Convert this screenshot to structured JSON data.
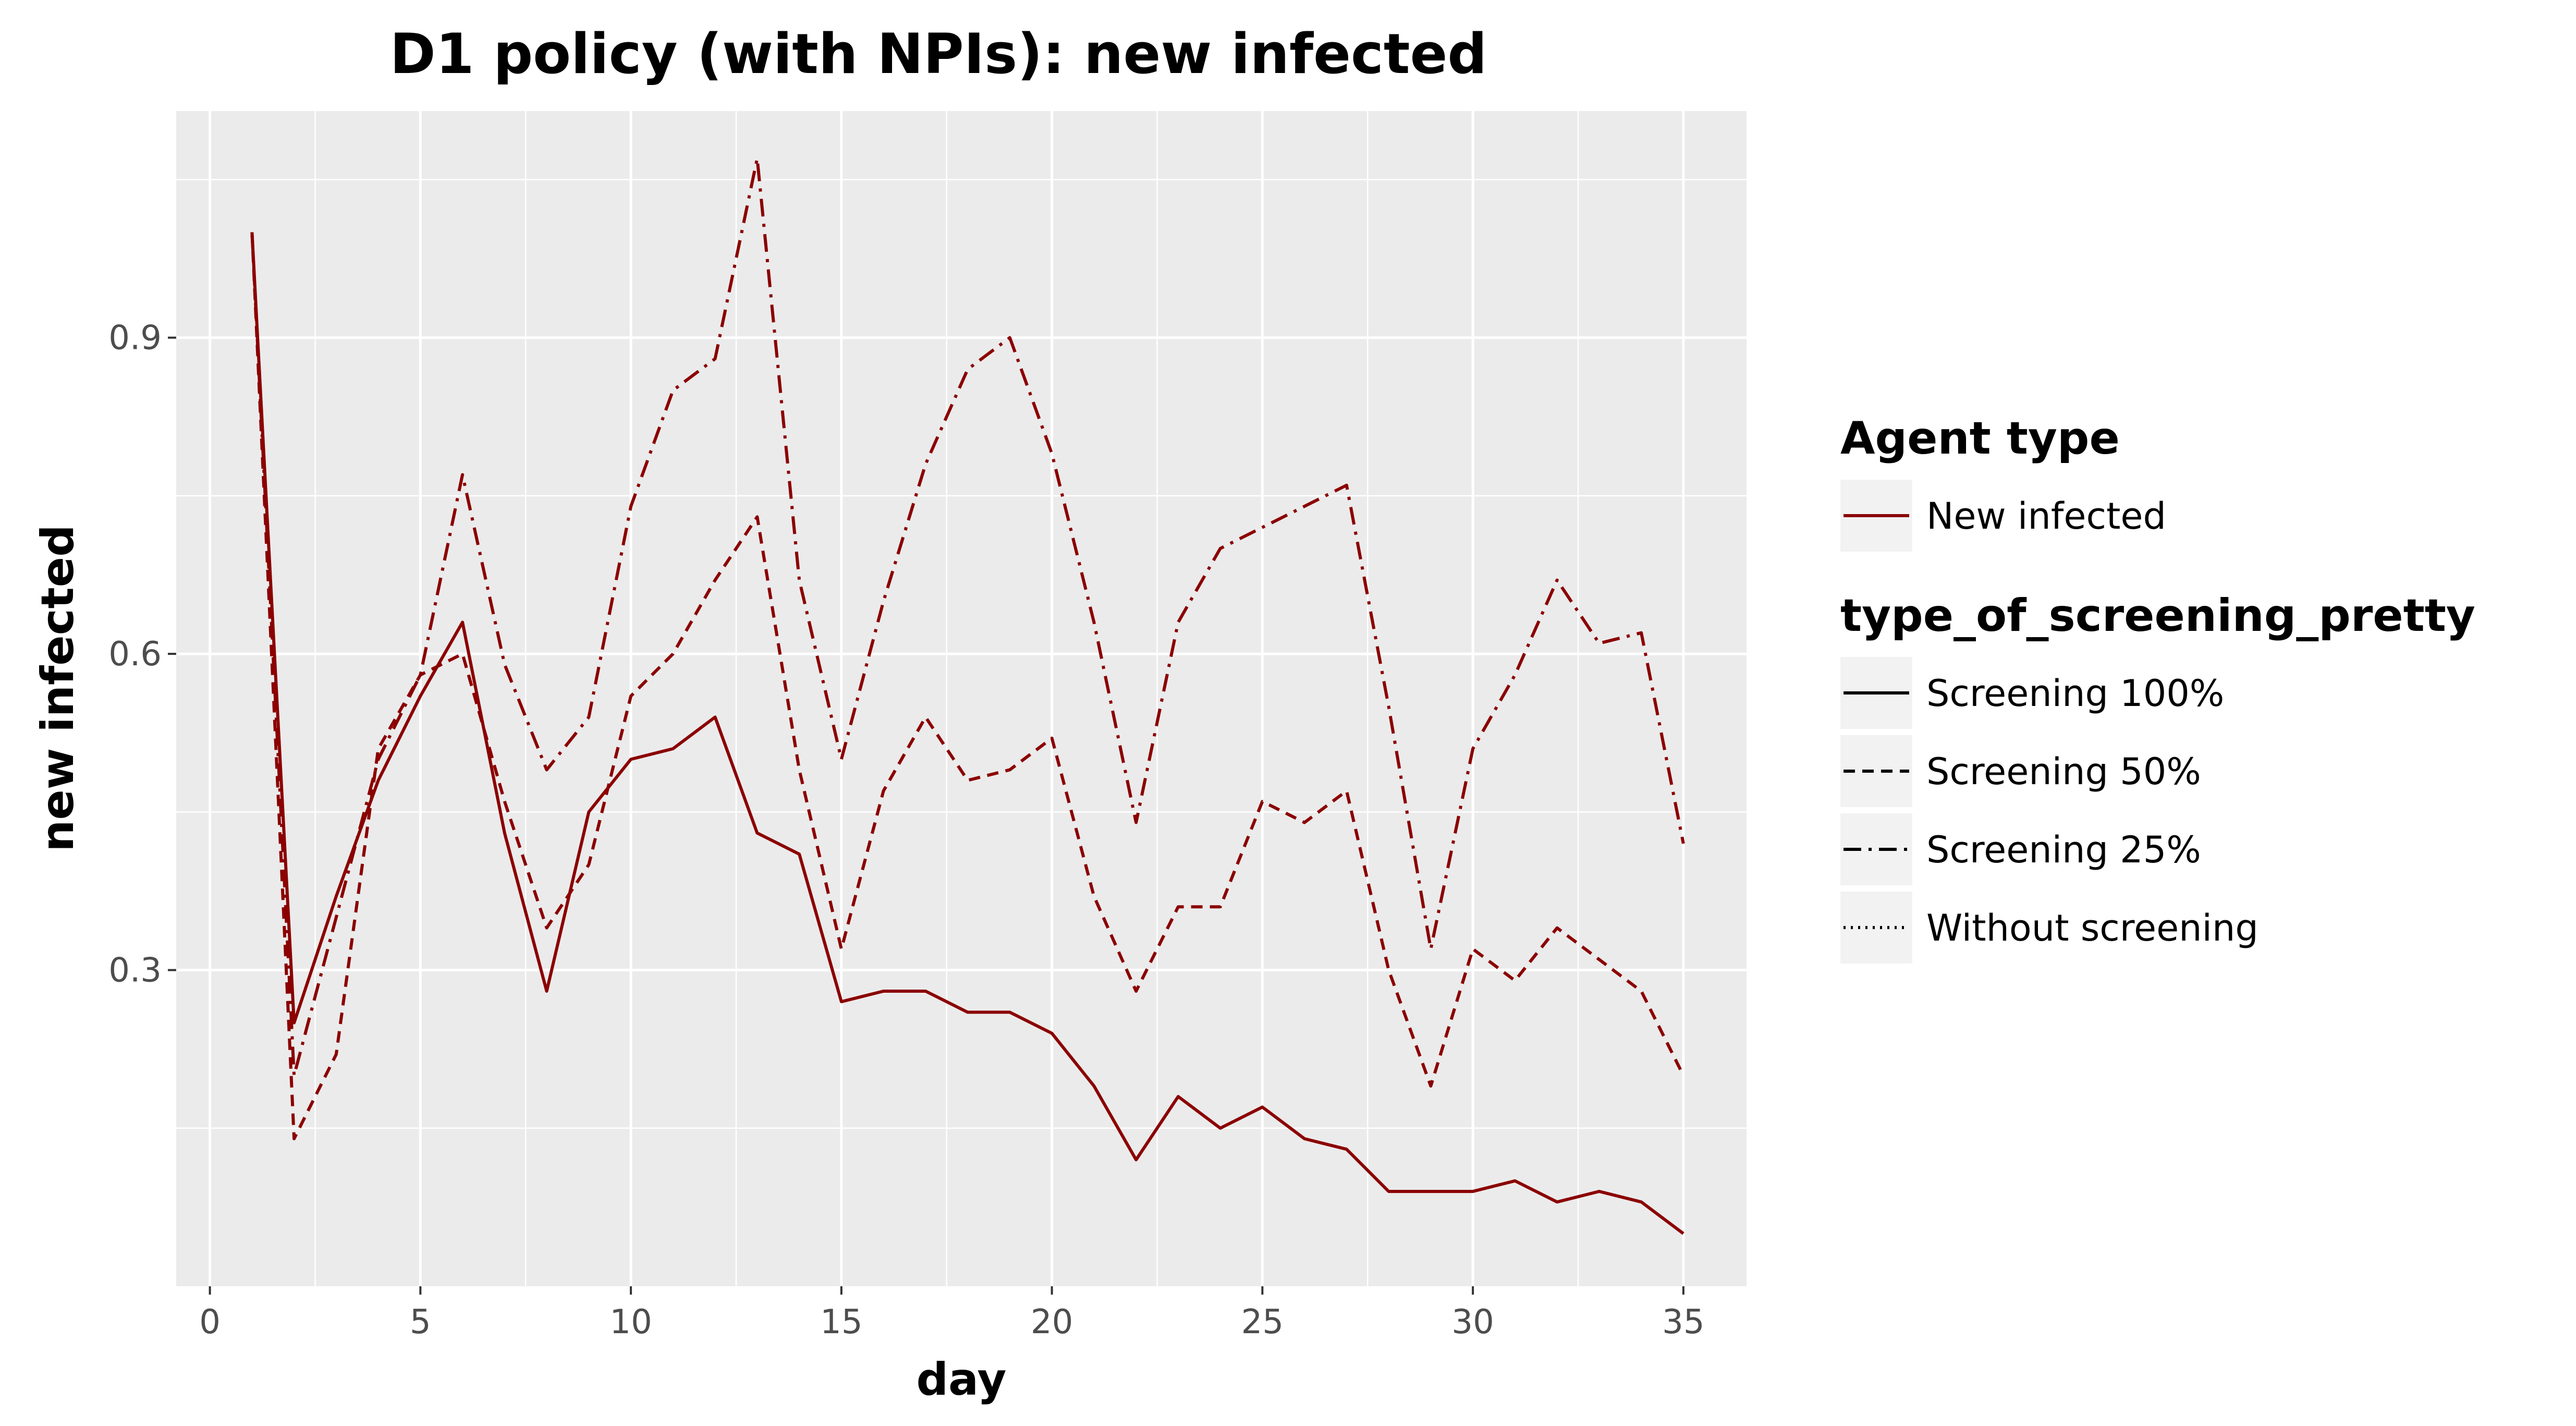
{
  "chart_data": {
    "type": "line",
    "title": "D1 policy (with NPIs): new infected",
    "xlabel": "day",
    "ylabel": "new infected",
    "xlim": [
      -0.8,
      36.5
    ],
    "ylim": [
      0.0,
      1.115
    ],
    "x_ticks": [
      0,
      5,
      10,
      15,
      20,
      25,
      30,
      35
    ],
    "x_tick_labels": [
      "0",
      "5",
      "10",
      "15",
      "20",
      "25",
      "30",
      "35"
    ],
    "y_ticks": [
      0.3,
      0.6,
      0.9
    ],
    "y_tick_labels": [
      "0.3",
      "0.6",
      "0.9"
    ],
    "grid": true,
    "line_color": "#8b0000",
    "panel_background": "#ebebeb",
    "legend_position": "right",
    "legends": [
      {
        "title": "Agent type",
        "entries": [
          {
            "label": "New infected",
            "style": "solid",
            "color": "#8b0000"
          }
        ]
      },
      {
        "title": "type_of_screening_pretty",
        "entries": [
          {
            "label": "Screening 100%",
            "style": "solid",
            "color": "#000000"
          },
          {
            "label": "Screening 50%",
            "style": "dashed",
            "color": "#000000"
          },
          {
            "label": "Screening 25%",
            "style": "dashdot",
            "color": "#000000"
          },
          {
            "label": "Without screening",
            "style": "dotted",
            "color": "#000000"
          }
        ]
      }
    ],
    "x": [
      1,
      2,
      3,
      4,
      5,
      6,
      7,
      8,
      9,
      10,
      11,
      12,
      13,
      14,
      15,
      16,
      17,
      18,
      19,
      20,
      21,
      22,
      23,
      24,
      25,
      26,
      27,
      28,
      29,
      30,
      31,
      32,
      33,
      34,
      35
    ],
    "series": [
      {
        "name": "Screening 100%",
        "style": "solid",
        "values": [
          1.0,
          0.25,
          0.37,
          0.48,
          0.56,
          0.63,
          0.43,
          0.28,
          0.45,
          0.5,
          0.51,
          0.54,
          0.43,
          0.41,
          0.27,
          0.28,
          0.28,
          0.26,
          0.26,
          0.24,
          0.19,
          0.12,
          0.18,
          0.15,
          0.17,
          0.14,
          0.13,
          0.09,
          0.09,
          0.09,
          0.1,
          0.08,
          0.09,
          0.08,
          0.05
        ]
      },
      {
        "name": "Screening 50%",
        "style": "dashed",
        "values": [
          1.0,
          0.14,
          0.22,
          0.51,
          0.58,
          0.6,
          0.46,
          0.34,
          0.4,
          0.56,
          0.6,
          0.67,
          0.73,
          0.49,
          0.32,
          0.47,
          0.54,
          0.48,
          0.49,
          0.52,
          0.37,
          0.28,
          0.36,
          0.36,
          0.46,
          0.44,
          0.47,
          0.3,
          0.19,
          0.32,
          0.29,
          0.34,
          0.31,
          0.28,
          0.2
        ]
      },
      {
        "name": "Screening 25%",
        "style": "dashdot",
        "values": [
          1.0,
          0.2,
          0.35,
          0.5,
          0.58,
          0.77,
          0.59,
          0.49,
          0.54,
          0.74,
          0.85,
          0.88,
          1.07,
          0.67,
          0.5,
          0.65,
          0.78,
          0.87,
          0.9,
          0.79,
          0.63,
          0.44,
          0.63,
          0.7,
          0.72,
          0.74,
          0.76,
          0.55,
          0.32,
          0.51,
          0.58,
          0.67,
          0.61,
          0.62,
          0.42
        ]
      }
    ]
  }
}
